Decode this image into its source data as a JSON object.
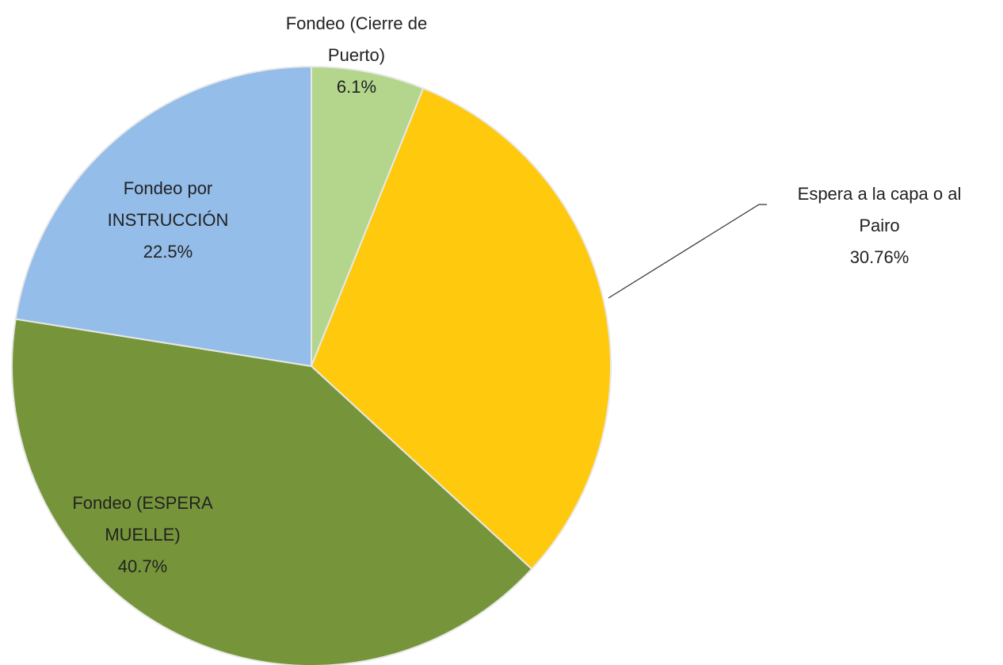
{
  "chart_data": {
    "type": "pie",
    "categories": [
      "Fondeo (Cierre de Puerto)",
      "Espera a la capa o al Pairo",
      "Fondeo (ESPERA MUELLE)",
      "Fondeo por INSTRUCCIÓN"
    ],
    "values": [
      6.1,
      30.76,
      40.7,
      22.5
    ],
    "value_labels": [
      "6.1%",
      "30.76%",
      "40.7%",
      "22.5%"
    ],
    "colors": [
      "#b3d68c",
      "#ffc90e",
      "#76953a",
      "#94bde9"
    ]
  }
}
